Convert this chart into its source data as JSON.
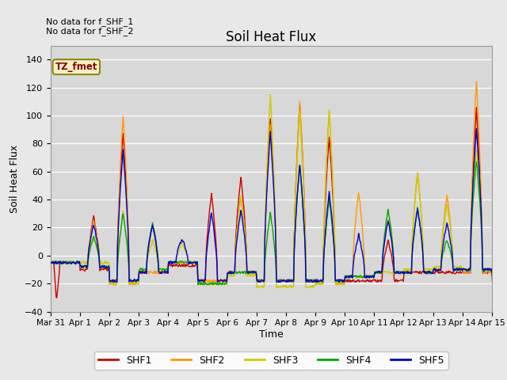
{
  "title": "Soil Heat Flux",
  "xlabel": "Time",
  "ylabel": "Soil Heat Flux",
  "ylim": [
    -40,
    150
  ],
  "yticks": [
    -40,
    -20,
    0,
    20,
    40,
    60,
    80,
    100,
    120,
    140
  ],
  "fig_bg_color": "#e8e8e8",
  "plot_bg_color": "#d8d8d8",
  "no_data_text": [
    "No data for f_SHF_1",
    "No data for f_SHF_2"
  ],
  "tz_label": "TZ_fmet",
  "legend_labels": [
    "SHF1",
    "SHF2",
    "SHF3",
    "SHF4",
    "SHF5"
  ],
  "legend_colors": [
    "#cc0000",
    "#ff9900",
    "#cccc00",
    "#00aa00",
    "#0000cc"
  ],
  "line_width": 1.0,
  "x_tick_labels": [
    "Mar 31",
    "Apr 1",
    "Apr 2",
    "Apr 3",
    "Apr 4",
    "Apr 5",
    "Apr 6",
    "Apr 7",
    "Apr 8",
    "Apr 9",
    "Apr 10",
    "Apr 11",
    "Apr 12",
    "Apr 13",
    "Apr 14",
    "Apr 15"
  ],
  "n_days": 16,
  "pts_per_day": 48,
  "day_peaks": {
    "shf1": [
      0,
      28,
      88,
      22,
      0,
      44,
      56,
      98,
      108,
      85,
      0,
      11,
      0,
      0,
      105,
      0
    ],
    "shf2": [
      0,
      25,
      100,
      0,
      0,
      0,
      42,
      94,
      110,
      103,
      45,
      26,
      60,
      43,
      125,
      0
    ],
    "shf3": [
      0,
      12,
      32,
      11,
      9,
      0,
      42,
      115,
      103,
      104,
      0,
      0,
      58,
      36,
      75,
      0
    ],
    "shf4": [
      0,
      13,
      30,
      23,
      0,
      0,
      0,
      30,
      65,
      40,
      0,
      33,
      34,
      11,
      68,
      0
    ],
    "shf5": [
      0,
      22,
      75,
      22,
      12,
      31,
      32,
      88,
      65,
      45,
      15,
      25,
      34,
      23,
      90,
      0
    ]
  },
  "night_base": -12
}
